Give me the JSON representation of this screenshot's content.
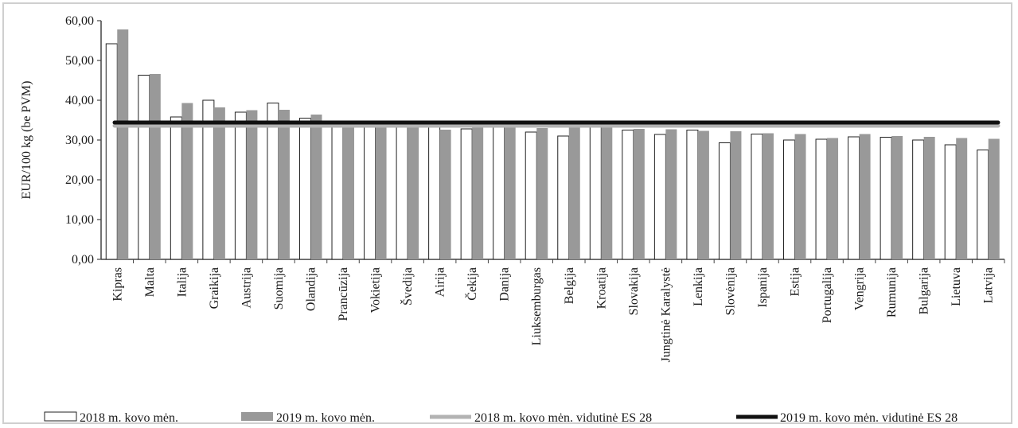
{
  "chart_data": {
    "type": "bar",
    "ylabel": "EUR/100 kg (be PVM)",
    "ylim": [
      0,
      60
    ],
    "yticks": [
      "0,00",
      "10,00",
      "20,00",
      "30,00",
      "40,00",
      "50,00",
      "60,00"
    ],
    "categories": [
      "Kipras",
      "Malta",
      "Italija",
      "Graikija",
      "Austrija",
      "Suomija",
      "Olandija",
      "Prancūzija",
      "Vokietija",
      "Švedija",
      "Airija",
      "Čekija",
      "Danija",
      "Liuksemburgas",
      "Belgija",
      "Kroatija",
      "Slovakija",
      "Jungtinė Karalystė",
      "Lenkija",
      "Slovėnija",
      "Ispanija",
      "Estija",
      "Portugalija",
      "Vengrija",
      "Rumunija",
      "Bulgarija",
      "Lietuva",
      "Latvija"
    ],
    "series": [
      {
        "name": "2018 m. kovo mėn.",
        "color": "#ffffff",
        "values": [
          54.2,
          46.3,
          35.8,
          40.0,
          37.0,
          39.3,
          35.5,
          33.6,
          33.3,
          33.3,
          33.3,
          32.8,
          33.8,
          32.0,
          31.0,
          33.3,
          32.5,
          31.4,
          32.5,
          29.3,
          31.5,
          30.0,
          30.2,
          30.8,
          30.7,
          30.0,
          28.8,
          27.5
        ]
      },
      {
        "name": "2019 m. kovo mėn.",
        "color": "#999999",
        "values": [
          57.8,
          46.6,
          39.3,
          38.2,
          37.5,
          37.6,
          36.4,
          33.9,
          33.4,
          33.3,
          32.6,
          33.5,
          33.3,
          33.0,
          33.3,
          33.3,
          32.8,
          32.7,
          32.3,
          32.2,
          31.7,
          31.5,
          30.5,
          31.5,
          31.0,
          30.8,
          30.5,
          30.3
        ]
      }
    ],
    "reference_lines": [
      {
        "name": "2018 m. kovo mėn. vidutinė ES 28",
        "value": 33.6,
        "color": "#b3b3b3"
      },
      {
        "name": "2019 m. kovo mėn. vidutinė ES 28",
        "value": 34.4,
        "color": "#111111"
      }
    ],
    "grid": false,
    "legend_position": "bottom"
  }
}
